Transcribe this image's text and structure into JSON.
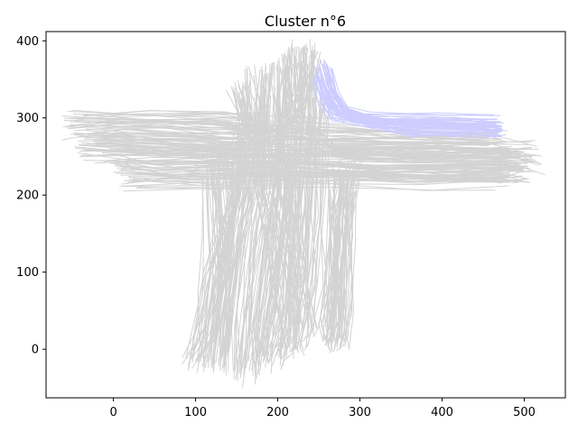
{
  "chart_data": {
    "type": "line",
    "title": "Cluster n°6",
    "xlabel": "",
    "ylabel": "",
    "xlim": [
      -82,
      550
    ],
    "ylim": [
      -63,
      412
    ],
    "x_ticks": [
      0,
      100,
      200,
      300,
      400,
      500
    ],
    "y_ticks": [
      0,
      100,
      200,
      300,
      400
    ],
    "grid": false,
    "legend": "none",
    "background_color": "#d3d3d3",
    "highlight_color": "#ccccff",
    "background_trajectories": [
      {
        "points": [
          [
            -50,
            288
          ],
          [
            20,
            292
          ],
          [
            120,
            290
          ],
          [
            250,
            283
          ],
          [
            380,
            278
          ],
          [
            470,
            276
          ]
        ]
      },
      {
        "points": [
          [
            -40,
            270
          ],
          [
            60,
            268
          ],
          [
            200,
            265
          ],
          [
            330,
            262
          ],
          [
            460,
            260
          ],
          [
            510,
            255
          ]
        ]
      },
      {
        "points": [
          [
            -30,
            255
          ],
          [
            80,
            252
          ],
          [
            220,
            250
          ],
          [
            350,
            248
          ],
          [
            480,
            245
          ],
          [
            515,
            240
          ]
        ]
      },
      {
        "points": [
          [
            10,
            230
          ],
          [
            100,
            228
          ],
          [
            230,
            232
          ],
          [
            360,
            230
          ],
          [
            470,
            228
          ],
          [
            500,
            225
          ]
        ]
      },
      {
        "points": [
          [
            20,
            215
          ],
          [
            120,
            218
          ],
          [
            250,
            222
          ],
          [
            380,
            219
          ],
          [
            470,
            217
          ]
        ]
      },
      {
        "points": [
          [
            -45,
            300
          ],
          [
            40,
            302
          ],
          [
            130,
            300
          ],
          [
            180,
            292
          ]
        ]
      },
      {
        "points": [
          [
            480,
            228
          ],
          [
            330,
            230
          ],
          [
            200,
            240
          ],
          [
            60,
            236
          ],
          [
            0,
            240
          ]
        ]
      },
      {
        "points": [
          [
            150,
            345
          ],
          [
            160,
            300
          ],
          [
            155,
            250
          ],
          [
            140,
            180
          ],
          [
            120,
            100
          ],
          [
            100,
            -15
          ]
        ]
      },
      {
        "points": [
          [
            170,
            355
          ],
          [
            175,
            310
          ],
          [
            165,
            240
          ],
          [
            150,
            160
          ],
          [
            135,
            60
          ],
          [
            125,
            -25
          ]
        ]
      },
      {
        "points": [
          [
            185,
            360
          ],
          [
            182,
            300
          ],
          [
            175,
            220
          ],
          [
            165,
            140
          ],
          [
            155,
            40
          ],
          [
            150,
            -30
          ]
        ]
      },
      {
        "points": [
          [
            200,
            370
          ],
          [
            198,
            300
          ],
          [
            190,
            210
          ],
          [
            180,
            120
          ],
          [
            170,
            20
          ],
          [
            165,
            -35
          ]
        ]
      },
      {
        "points": [
          [
            215,
            385
          ],
          [
            212,
            320
          ],
          [
            205,
            230
          ],
          [
            195,
            130
          ],
          [
            185,
            30
          ],
          [
            180,
            -20
          ]
        ]
      },
      {
        "points": [
          [
            230,
            390
          ],
          [
            228,
            310
          ],
          [
            222,
            220
          ],
          [
            215,
            120
          ],
          [
            205,
            20
          ],
          [
            198,
            -15
          ]
        ]
      },
      {
        "points": [
          [
            240,
            385
          ],
          [
            238,
            300
          ],
          [
            232,
            210
          ],
          [
            225,
            110
          ],
          [
            215,
            10
          ],
          [
            212,
            0
          ]
        ]
      },
      {
        "points": [
          [
            255,
            330
          ],
          [
            250,
            260
          ],
          [
            245,
            180
          ],
          [
            240,
            90
          ],
          [
            232,
            15
          ],
          [
            228,
            5
          ]
        ]
      },
      {
        "points": [
          [
            195,
            330
          ],
          [
            200,
            260
          ],
          [
            215,
            180
          ],
          [
            225,
            100
          ],
          [
            235,
            25
          ]
        ]
      },
      {
        "points": [
          [
            175,
            300
          ],
          [
            185,
            220
          ],
          [
            200,
            140
          ],
          [
            210,
            60
          ],
          [
            215,
            0
          ]
        ]
      },
      {
        "points": [
          [
            130,
            260
          ],
          [
            135,
            200
          ],
          [
            140,
            120
          ],
          [
            135,
            40
          ],
          [
            130,
            -20
          ]
        ]
      },
      {
        "points": [
          [
            115,
            230
          ],
          [
            118,
            160
          ],
          [
            120,
            90
          ],
          [
            110,
            20
          ],
          [
            95,
            -10
          ]
        ]
      },
      {
        "points": [
          [
            270,
            225
          ],
          [
            268,
            160
          ],
          [
            265,
            100
          ],
          [
            262,
            40
          ],
          [
            258,
            20
          ]
        ]
      },
      {
        "points": [
          [
            285,
            220
          ],
          [
            283,
            150
          ],
          [
            280,
            80
          ],
          [
            276,
            20
          ],
          [
            272,
            3
          ]
        ]
      },
      {
        "points": [
          [
            275,
            215
          ],
          [
            272,
            120
          ],
          [
            268,
            40
          ],
          [
            264,
            8
          ]
        ]
      },
      {
        "points": [
          [
            -20,
            280
          ],
          [
            60,
            275
          ],
          [
            150,
            270
          ],
          [
            200,
            280
          ],
          [
            230,
            330
          ],
          [
            240,
            380
          ]
        ]
      },
      {
        "points": [
          [
            490,
            250
          ],
          [
            380,
            255
          ],
          [
            260,
            258
          ],
          [
            220,
            300
          ],
          [
            215,
            370
          ]
        ]
      },
      {
        "points": [
          [
            160,
            330
          ],
          [
            170,
            280
          ],
          [
            250,
            265
          ],
          [
            380,
            268
          ],
          [
            470,
            262
          ]
        ]
      },
      {
        "points": [
          [
            100,
            240
          ],
          [
            180,
            245
          ],
          [
            220,
            235
          ],
          [
            210,
            150
          ],
          [
            195,
            50
          ],
          [
            180,
            -10
          ]
        ]
      },
      {
        "points": [
          [
            -10,
            262
          ],
          [
            90,
            258
          ],
          [
            160,
            255
          ],
          [
            150,
            170
          ],
          [
            140,
            80
          ],
          [
            130,
            -5
          ]
        ]
      },
      {
        "points": [
          [
            500,
            238
          ],
          [
            400,
            240
          ],
          [
            290,
            238
          ],
          [
            280,
            160
          ],
          [
            276,
            60
          ],
          [
            272,
            10
          ]
        ]
      }
    ],
    "highlight_trajectories": [
      {
        "points": [
          [
            248,
            360
          ],
          [
            256,
            330
          ],
          [
            268,
            310
          ],
          [
            300,
            300
          ],
          [
            380,
            298
          ],
          [
            470,
            296
          ]
        ]
      },
      {
        "points": [
          [
            252,
            370
          ],
          [
            262,
            335
          ],
          [
            275,
            308
          ],
          [
            320,
            292
          ],
          [
            400,
            290
          ],
          [
            470,
            288
          ]
        ]
      },
      {
        "points": [
          [
            255,
            355
          ],
          [
            262,
            325
          ],
          [
            278,
            305
          ],
          [
            340,
            290
          ],
          [
            420,
            286
          ],
          [
            468,
            284
          ]
        ]
      },
      {
        "points": [
          [
            258,
            372
          ],
          [
            266,
            340
          ],
          [
            280,
            312
          ],
          [
            330,
            296
          ],
          [
            420,
            295
          ],
          [
            472,
            293
          ]
        ]
      },
      {
        "points": [
          [
            246,
            350
          ],
          [
            254,
            320
          ],
          [
            266,
            302
          ],
          [
            310,
            294
          ],
          [
            390,
            292
          ],
          [
            465,
            290
          ]
        ]
      },
      {
        "points": [
          [
            260,
            360
          ],
          [
            268,
            328
          ],
          [
            285,
            300
          ],
          [
            350,
            285
          ],
          [
            430,
            283
          ],
          [
            470,
            281
          ]
        ]
      },
      {
        "points": [
          [
            250,
            365
          ],
          [
            258,
            338
          ],
          [
            272,
            314
          ],
          [
            310,
            302
          ],
          [
            400,
            300
          ],
          [
            468,
            299
          ]
        ]
      },
      {
        "points": [
          [
            262,
            368
          ],
          [
            270,
            332
          ],
          [
            290,
            298
          ],
          [
            360,
            280
          ],
          [
            440,
            278
          ],
          [
            472,
            277
          ]
        ]
      }
    ]
  }
}
